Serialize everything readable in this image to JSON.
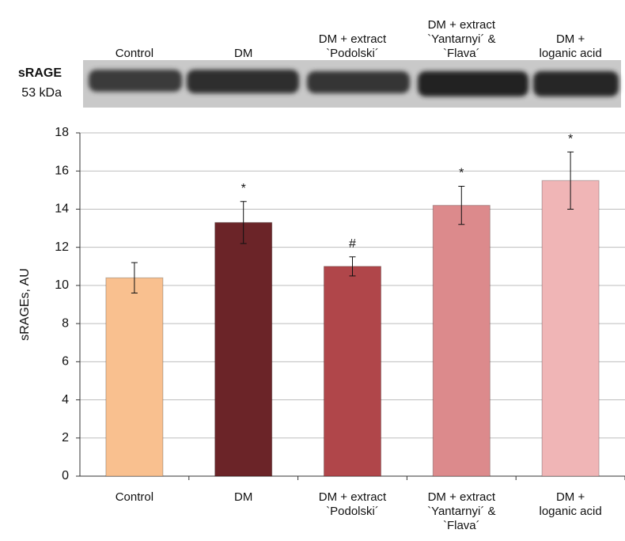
{
  "chart_data": {
    "type": "bar",
    "blot_label": "sRAGE",
    "blot_weight": "53 kDa",
    "ylabel": "sRAGEs, AU",
    "categories": [
      "Control",
      "DM",
      "DM + extract\n`Podolski´",
      "DM + extract\n`Yantarnyi´ &\n`Flava´",
      "DM +\nloganic acid"
    ],
    "values": [
      10.4,
      13.3,
      11.0,
      14.2,
      15.5
    ],
    "errors": [
      0.8,
      1.1,
      0.5,
      1.0,
      1.5
    ],
    "annotations": [
      null,
      "*",
      "#",
      "*",
      "*"
    ],
    "colors": [
      "#f9c08f",
      "#6b2428",
      "#b0464a",
      "#dc8a8c",
      "#f0b5b6"
    ],
    "ylim": [
      0,
      18
    ],
    "yticks": [
      0,
      2,
      4,
      6,
      8,
      10,
      12,
      14,
      16,
      18
    ],
    "grid": true
  }
}
